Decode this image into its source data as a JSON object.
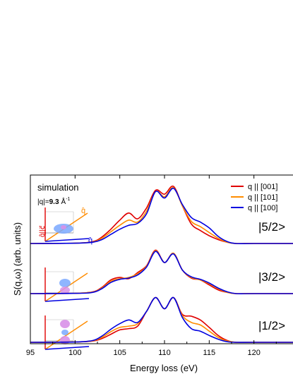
{
  "chart_data": {
    "type": "line",
    "xlabel": "Energy loss (eV)",
    "ylabel": "S(q,ω) (arb. units)",
    "xlim": [
      95,
      125
    ],
    "x_ticks": [
      "95",
      "100",
      "105",
      "110",
      "115",
      "120",
      "12"
    ],
    "y_ticks": "none",
    "legend_position": "top-right",
    "annotations": {
      "simulation": "simulation",
      "q_label": "|q|=",
      "q_value": "9.3",
      "q_unit": "Å",
      "q_exponent": "-1"
    },
    "legend": [
      {
        "name": "q || [001]",
        "color": "#e00000"
      },
      {
        "name": "q || [101]",
        "color": "#ff8c00"
      },
      {
        "name": "q || [100]",
        "color": "#0000e0"
      }
    ],
    "insets": {
      "axis_top": "q̂||c⃗",
      "axis_side": "q̂",
      "axis_bottom": "q̂"
    },
    "panels": [
      {
        "label": "|5/2>",
        "series": [
          {
            "name": "q || [001]",
            "x": [
              95,
              100,
              102,
              103,
              104,
              105,
              106,
              107,
              108,
              109,
              110,
              111,
              112,
              113,
              114,
              115,
              116,
              117,
              118,
              120,
              125
            ],
            "values": [
              0.0,
              0.005,
              0.03,
              0.1,
              0.22,
              0.36,
              0.47,
              0.38,
              0.55,
              0.82,
              0.76,
              0.88,
              0.58,
              0.3,
              0.2,
              0.12,
              0.06,
              0.02,
              0.0,
              0.0,
              0.0
            ]
          },
          {
            "name": "q || [101]",
            "x": [
              95,
              100,
              102,
              103,
              104,
              105,
              106,
              107,
              108,
              109,
              110,
              111,
              112,
              113,
              114,
              115,
              116,
              117,
              118,
              120,
              125
            ],
            "values": [
              0.0,
              0.005,
              0.025,
              0.08,
              0.18,
              0.28,
              0.36,
              0.33,
              0.5,
              0.8,
              0.72,
              0.86,
              0.58,
              0.34,
              0.26,
              0.17,
              0.08,
              0.02,
              0.0,
              0.0,
              0.0
            ]
          },
          {
            "name": "q || [100]",
            "x": [
              95,
              100,
              102,
              103,
              104,
              105,
              106,
              107,
              108,
              109,
              110,
              111,
              112,
              113,
              114,
              115,
              116,
              117,
              118,
              120,
              125
            ],
            "values": [
              0.0,
              0.004,
              0.02,
              0.06,
              0.14,
              0.22,
              0.28,
              0.31,
              0.46,
              0.8,
              0.7,
              0.85,
              0.6,
              0.4,
              0.33,
              0.24,
              0.11,
              0.03,
              0.0,
              0.0,
              0.0
            ]
          }
        ]
      },
      {
        "label": "|3/2>",
        "series": [
          {
            "name": "q || [001]",
            "x": [
              95,
              100,
              102,
              103,
              104,
              105,
              106,
              107,
              108,
              109,
              110,
              111,
              112,
              113,
              114,
              115,
              116,
              117,
              118,
              120,
              125
            ],
            "values": [
              0.0,
              0.005,
              0.03,
              0.1,
              0.22,
              0.26,
              0.24,
              0.34,
              0.45,
              0.7,
              0.5,
              0.65,
              0.38,
              0.25,
              0.22,
              0.14,
              0.06,
              0.02,
              0.0,
              0.0,
              0.0
            ]
          },
          {
            "name": "q || [101]",
            "x": [
              95,
              100,
              102,
              103,
              104,
              105,
              106,
              107,
              108,
              109,
              110,
              111,
              112,
              113,
              114,
              115,
              116,
              117,
              118,
              120,
              125
            ],
            "values": [
              0.0,
              0.005,
              0.025,
              0.09,
              0.2,
              0.24,
              0.26,
              0.32,
              0.44,
              0.69,
              0.5,
              0.65,
              0.38,
              0.26,
              0.22,
              0.16,
              0.08,
              0.02,
              0.0,
              0.0,
              0.0
            ]
          },
          {
            "name": "q || [100]",
            "x": [
              95,
              100,
              102,
              103,
              104,
              105,
              106,
              107,
              108,
              109,
              110,
              111,
              112,
              113,
              114,
              115,
              116,
              117,
              118,
              120,
              125
            ],
            "values": [
              0.0,
              0.004,
              0.02,
              0.08,
              0.18,
              0.23,
              0.25,
              0.3,
              0.43,
              0.68,
              0.5,
              0.64,
              0.38,
              0.27,
              0.23,
              0.17,
              0.09,
              0.03,
              0.0,
              0.0,
              0.0
            ]
          }
        ]
      },
      {
        "label": "|1/2>",
        "series": [
          {
            "name": "q || [001]",
            "x": [
              95,
              100,
              102,
              103,
              104,
              105,
              106,
              107,
              108,
              109,
              110,
              111,
              112,
              113,
              114,
              115,
              116,
              117,
              118,
              120,
              125
            ],
            "values": [
              0.0,
              0.004,
              0.02,
              0.06,
              0.13,
              0.2,
              0.22,
              0.26,
              0.5,
              0.72,
              0.54,
              0.72,
              0.45,
              0.42,
              0.36,
              0.24,
              0.11,
              0.03,
              0.0,
              0.0,
              0.0
            ]
          },
          {
            "name": "q || [101]",
            "x": [
              95,
              100,
              102,
              103,
              104,
              105,
              106,
              107,
              108,
              109,
              110,
              111,
              112,
              113,
              114,
              115,
              116,
              117,
              118,
              120,
              125
            ],
            "values": [
              0.0,
              0.005,
              0.025,
              0.08,
              0.17,
              0.24,
              0.26,
              0.3,
              0.5,
              0.72,
              0.54,
              0.72,
              0.43,
              0.32,
              0.28,
              0.18,
              0.08,
              0.02,
              0.0,
              0.0,
              0.0
            ]
          },
          {
            "name": "q || [100]",
            "x": [
              95,
              100,
              102,
              103,
              104,
              105,
              106,
              107,
              108,
              109,
              110,
              111,
              112,
              113,
              114,
              115,
              116,
              117,
              118,
              120,
              125
            ],
            "values": [
              0.0,
              0.005,
              0.03,
              0.1,
              0.21,
              0.3,
              0.36,
              0.32,
              0.5,
              0.72,
              0.54,
              0.72,
              0.4,
              0.22,
              0.18,
              0.11,
              0.05,
              0.01,
              0.0,
              0.0,
              0.0
            ]
          }
        ]
      }
    ]
  }
}
